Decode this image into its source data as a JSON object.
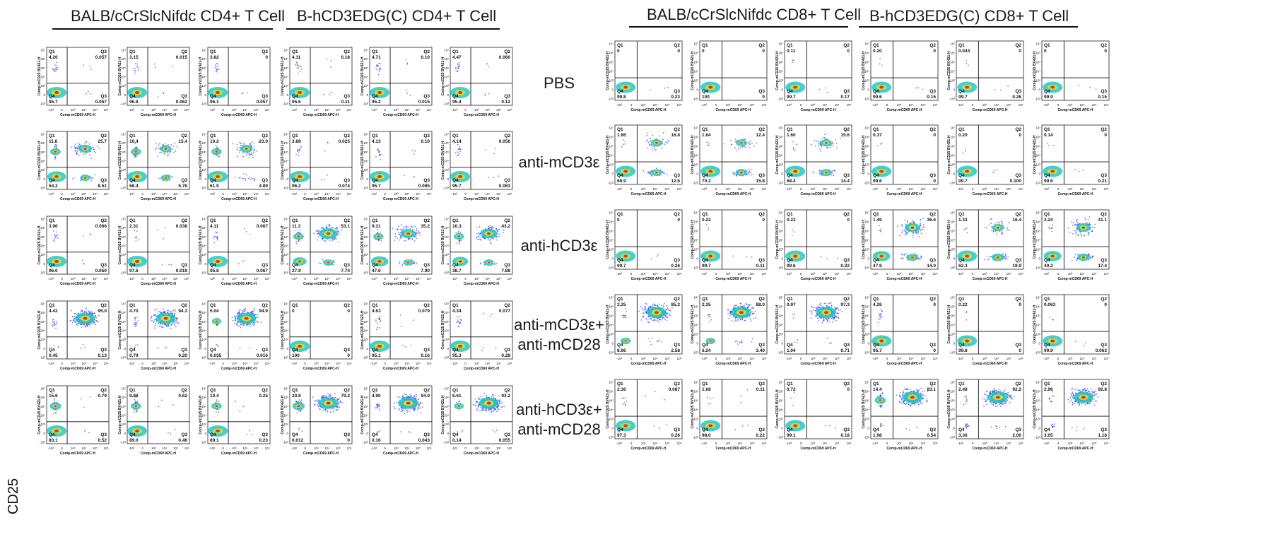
{
  "headers": {
    "left": [
      "BALB/cCrSlcNifdc CD4+ T Cell",
      "B-hCD3EDG(C) CD4+ T Cell"
    ],
    "right": [
      "BALB/cCrSlcNifdc CD8+ T Cell",
      "B-hCD3EDG(C) CD8+ T Cell"
    ]
  },
  "row_labels": [
    [
      "PBS"
    ],
    [
      "anti-mCD3ε"
    ],
    [
      "anti-hCD3ε"
    ],
    [
      "anti-mCD3ε+",
      "anti-mCD28"
    ],
    [
      "anti-hCD3ε+",
      "anti-mCD28"
    ]
  ],
  "y_marker": "CD25",
  "axis": {
    "xlabel": "Comp-mCD69 APC-H",
    "ylabel": "Comp-mCD25 BV421-H",
    "x_ticks": [
      "-10³",
      "0",
      "10³",
      "10⁴",
      "10⁵",
      "10⁶"
    ],
    "y_ticks": [
      "10⁷",
      "10⁶",
      "10⁵",
      "10⁴",
      "10³",
      "0",
      "-10³"
    ],
    "quadrant_names": [
      "Q1",
      "Q2",
      "Q3",
      "Q4"
    ]
  },
  "colors": {
    "density_low": "#1e2bd6",
    "density_mid": "#22c8c8",
    "density_high": "#f02a10",
    "gate": "#111111"
  },
  "chart_data": {
    "type": "scatter",
    "quadrant_order": [
      "Q1",
      "Q2",
      "Q3",
      "Q4"
    ],
    "panels": {
      "CD4": [
        [
          [
            "4.20",
            "0.057",
            "0.057",
            "95.7"
          ],
          [
            "3.15",
            "0.015",
            "0.062",
            "96.8"
          ],
          [
            "3.82",
            "0",
            "0.057",
            "96.1"
          ],
          [
            "4.11",
            "0.18",
            "0.11",
            "95.6"
          ],
          [
            "4.71",
            "0.10",
            "0.015",
            "95.2"
          ],
          [
            "4.47",
            "0.060",
            "0.12",
            "95.4"
          ]
        ],
        [
          [
            "11.6",
            "25.7",
            "8.51",
            "54.2"
          ],
          [
            "10.4",
            "15.4",
            "5.76",
            "68.4"
          ],
          [
            "10.2",
            "23.0",
            "4.89",
            "61.9"
          ],
          [
            "3.68",
            "0.025",
            "0.074",
            "96.2"
          ],
          [
            "4.13",
            "0.10",
            "0.085",
            "95.7"
          ],
          [
            "4.14",
            "0.056",
            "0.083",
            "95.7"
          ]
        ],
        [
          [
            "3.90",
            "0.066",
            "0.050",
            "96.0"
          ],
          [
            "2.31",
            "0.038",
            "0.019",
            "97.6"
          ],
          [
            "4.11",
            "0.067",
            "0.067",
            "95.8"
          ],
          [
            "11.3",
            "53.1",
            "7.74",
            "27.9"
          ],
          [
            "9.31",
            "35.2",
            "7.90",
            "47.6"
          ],
          [
            "10.3",
            "43.2",
            "7.88",
            "38.7"
          ]
        ],
        [
          [
            "4.42",
            "95.0",
            "0.13",
            "0.45"
          ],
          [
            "4.70",
            "94.3",
            "0.20",
            "0.79"
          ],
          [
            "5.04",
            "94.9",
            "0.016",
            "0.035"
          ],
          [
            "0",
            "0",
            "0",
            "100"
          ],
          [
            "4.63",
            "0.079",
            "0.16",
            "95.1"
          ],
          [
            "4.34",
            "0.077",
            "0.28",
            "95.3"
          ]
        ],
        [
          [
            "15.6",
            "0.79",
            "0.52",
            "83.1"
          ],
          [
            "9.88",
            "0.62",
            "0.46",
            "89.0"
          ],
          [
            "10.4",
            "0.25",
            "0.23",
            "89.1"
          ],
          [
            "20.8",
            "79.2",
            "0",
            "0.012"
          ],
          [
            "4.90",
            "94.9",
            "0.043",
            "0.16"
          ],
          [
            "6.61",
            "93.2",
            "0.055",
            "0.14"
          ]
        ]
      ],
      "CD8": [
        [
          [
            "0",
            "0",
            "0.23",
            "99.8"
          ],
          [
            "0",
            "0",
            "0",
            "100"
          ],
          [
            "0.11",
            "0",
            "0.17",
            "99.7"
          ],
          [
            "0.20",
            "0",
            "0.15",
            "99.6"
          ],
          [
            "0.043",
            "0",
            "0.26",
            "99.7"
          ],
          [
            "0",
            "0",
            "0.15",
            "99.9"
          ]
        ],
        [
          [
            "1.66",
            "16.8",
            "12.6",
            "68.9"
          ],
          [
            "1.64",
            "12.4",
            "15.8",
            "70.2"
          ],
          [
            "1.60",
            "15.6",
            "14.4",
            "68.4"
          ],
          [
            "0.37",
            "0",
            "0",
            "99.6"
          ],
          [
            "0.20",
            "0",
            "0.100",
            "99.7"
          ],
          [
            "0.14",
            "0",
            "0.21",
            "99.6"
          ]
        ],
        [
          [
            "0",
            "0",
            "0.26",
            "99.7"
          ],
          [
            "0.22",
            "0",
            "0.11",
            "99.7"
          ],
          [
            "0.22",
            "0",
            "0.22",
            "99.6"
          ],
          [
            "1.49",
            "36.6",
            "14.0",
            "47.9"
          ],
          [
            "1.33",
            "16.4",
            "19.9",
            "62.3"
          ],
          [
            "2.24",
            "31.1",
            "17.4",
            "49.2"
          ]
        ],
        [
          [
            "3.25",
            "85.2",
            "2.58",
            "8.96"
          ],
          [
            "2.35",
            "88.0",
            "3.40",
            "6.24"
          ],
          [
            "0.97",
            "97.3",
            "0.71",
            "1.04"
          ],
          [
            "4.26",
            "0",
            "0",
            "95.7"
          ],
          [
            "0.22",
            "0",
            "0",
            "99.8"
          ],
          [
            "0.063",
            "0",
            "0.063",
            "99.9"
          ]
        ],
        [
          [
            "2.36",
            "0.087",
            "0.26",
            "97.3"
          ],
          [
            "1.68",
            "0.11",
            "0.22",
            "98.0"
          ],
          [
            "0.72",
            "0",
            "0.18",
            "99.1"
          ],
          [
            "14.4",
            "83.1",
            "0.54",
            "1.98"
          ],
          [
            "2.48",
            "92.2",
            "2.00",
            "3.36"
          ],
          [
            "2.96",
            "92.8",
            "1.16",
            "3.05"
          ]
        ]
      ]
    }
  }
}
